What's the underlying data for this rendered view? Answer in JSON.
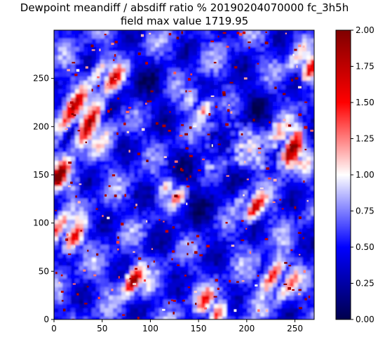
{
  "chart_data": {
    "type": "heatmap",
    "title": "Dewpoint meandiff / absdiff ratio % 20190204070000 fc_3h5h",
    "subtitle": "field max value 1719.95",
    "xlabel": "",
    "ylabel": "",
    "x_ticks": [
      "0",
      "50",
      "100",
      "150",
      "200",
      "250"
    ],
    "y_ticks": [
      "0",
      "50",
      "100",
      "150",
      "200",
      "250"
    ],
    "xlim": [
      0,
      270
    ],
    "ylim": [
      0,
      300
    ],
    "colorbar": {
      "colormap": "seismic",
      "ticks": [
        "0.00",
        "0.25",
        "0.50",
        "0.75",
        "1.00",
        "1.25",
        "1.50",
        "1.75",
        "2.00"
      ],
      "range": [
        0,
        2
      ],
      "stops": [
        "#00004c",
        "#0000ff",
        "#ffffff",
        "#ff0000",
        "#7f0000"
      ]
    },
    "grid": false
  }
}
